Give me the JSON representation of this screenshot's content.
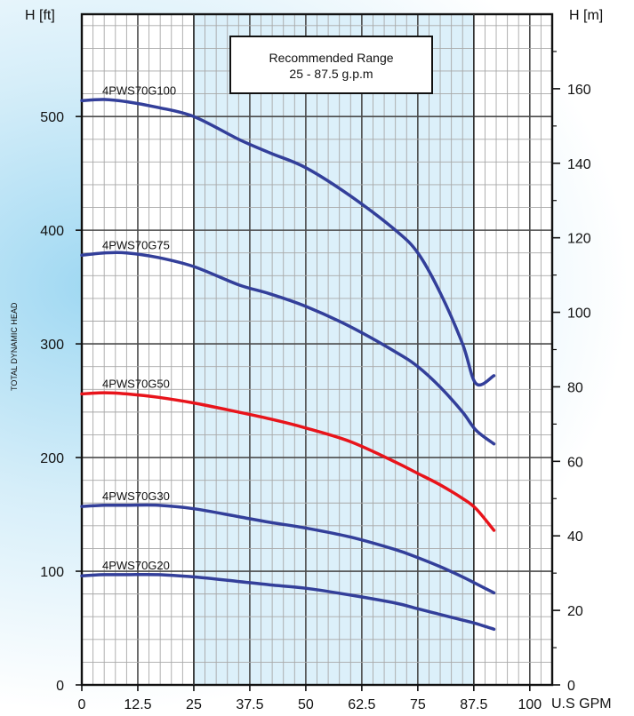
{
  "chart_data": {
    "type": "line",
    "title": "",
    "xlabel": "U.S GPM",
    "ylabel_left": "H [ft]",
    "ylabel_right": "H [m]",
    "ylabel_side": "TOTAL DYNAMIC HEAD",
    "xlim": [
      0,
      105
    ],
    "ylim_left": [
      0,
      590
    ],
    "ylim_right": [
      0,
      180
    ],
    "x_ticks": [
      0,
      12.5,
      25,
      37.5,
      50,
      62.5,
      75,
      87.5,
      100
    ],
    "x_tick_labels": [
      "0",
      "12.5",
      "25",
      "37.5",
      "50",
      "62.5",
      "75",
      "87.5",
      "100"
    ],
    "y_left_ticks": [
      0,
      100,
      200,
      300,
      400,
      500
    ],
    "y_left_tick_labels": [
      "0",
      "100",
      "200",
      "300",
      "400",
      "500"
    ],
    "y_right_ticks": [
      0,
      20,
      40,
      60,
      80,
      100,
      120,
      140,
      160
    ],
    "y_right_tick_labels": [
      "0",
      "20",
      "40",
      "60",
      "80",
      "100",
      "120",
      "140",
      "160"
    ],
    "grid": true,
    "recommended_range": {
      "x_start": 25,
      "x_end": 87.5,
      "line1": "Recommended Range",
      "line2": "25 - 87.5 g.p.m"
    },
    "series": [
      {
        "name": "4PWS70G100",
        "color": "#333f9a",
        "x": [
          0,
          5,
          10,
          17,
          25,
          35,
          42,
          50,
          60,
          70,
          75,
          80,
          85,
          88,
          92
        ],
        "y": [
          514,
          515,
          513,
          508,
          500,
          480,
          468,
          455,
          430,
          400,
          380,
          345,
          300,
          265,
          272
        ]
      },
      {
        "name": "4PWS70G75",
        "color": "#333f9a",
        "x": [
          0,
          5,
          10,
          17,
          25,
          35,
          42,
          50,
          60,
          70,
          75,
          80,
          85,
          88,
          92
        ],
        "y": [
          378,
          380,
          380,
          376,
          368,
          352,
          344,
          333,
          315,
          293,
          280,
          262,
          240,
          224,
          212
        ]
      },
      {
        "name": "4PWS70G50",
        "color": "#e8141b",
        "x": [
          0,
          5,
          10,
          17,
          25,
          35,
          42,
          50,
          60,
          70,
          75,
          80,
          85,
          88,
          92
        ],
        "y": [
          256,
          257,
          256,
          253,
          248,
          240,
          234,
          226,
          214,
          196,
          186,
          176,
          164,
          155,
          136
        ]
      },
      {
        "name": "4PWS70G30",
        "color": "#333f9a",
        "x": [
          0,
          5,
          10,
          17,
          25,
          35,
          42,
          50,
          60,
          70,
          75,
          80,
          85,
          88,
          92
        ],
        "y": [
          157,
          158,
          158,
          158,
          155,
          148,
          143,
          138,
          130,
          119,
          112,
          104,
          95,
          89,
          81
        ]
      },
      {
        "name": "4PWS70G20",
        "color": "#333f9a",
        "x": [
          0,
          5,
          10,
          17,
          25,
          35,
          42,
          50,
          60,
          70,
          75,
          80,
          85,
          88,
          92
        ],
        "y": [
          96,
          97,
          97,
          97,
          95,
          91,
          88,
          85,
          79,
          72,
          67,
          62,
          57,
          54,
          49
        ]
      }
    ]
  }
}
